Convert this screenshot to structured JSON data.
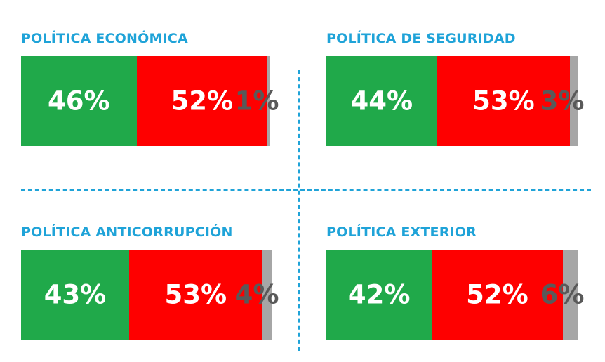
{
  "colors": {
    "favor": "#20a94a",
    "contra": "#fe0000",
    "other": "#a6a6a6",
    "title": "#1fa3d8",
    "divider": "#1fa3d8"
  },
  "chart_data": [
    {
      "type": "bar",
      "orientation": "horizontal-stacked",
      "title": "POLÍTICA ECONÓMICA",
      "values": [
        46,
        52,
        1
      ],
      "labels": [
        "46%",
        "52%",
        "1%"
      ]
    },
    {
      "type": "bar",
      "orientation": "horizontal-stacked",
      "title": "POLÍTICA DE SEGURIDAD",
      "values": [
        44,
        53,
        3
      ],
      "labels": [
        "44%",
        "53%",
        "3%"
      ]
    },
    {
      "type": "bar",
      "orientation": "horizontal-stacked",
      "title": "POLÍTICA ANTICORRUPCIÓN",
      "values": [
        43,
        53,
        4
      ],
      "labels": [
        "43%",
        "53%",
        "4%"
      ]
    },
    {
      "type": "bar",
      "orientation": "horizontal-stacked",
      "title": "POLÍTICA EXTERIOR",
      "values": [
        42,
        52,
        6
      ],
      "labels": [
        "42%",
        "52%",
        "6%"
      ]
    }
  ]
}
